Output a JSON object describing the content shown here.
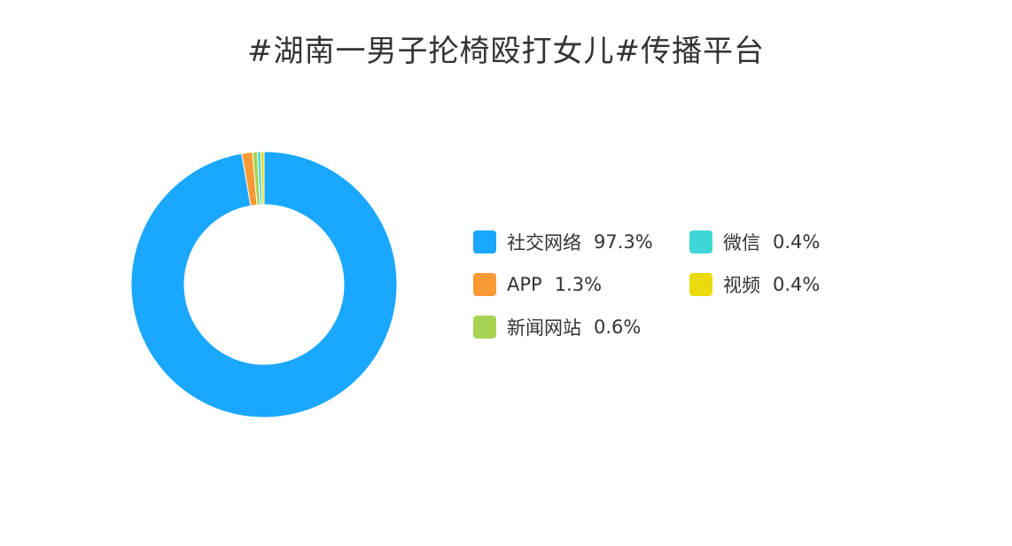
{
  "chart_data": {
    "type": "pie",
    "title": "#湖南一男子抡椅殴打女儿#传播平台",
    "categories": [
      "社交网络",
      "APP",
      "新闻网站",
      "微信",
      "视频"
    ],
    "values": [
      97.3,
      1.3,
      0.6,
      0.4,
      0.4
    ],
    "value_labels": [
      "97.3%",
      "1.3%",
      "0.6%",
      "0.4%",
      "0.4%"
    ],
    "unit": "%",
    "colors": [
      "#1aa7ff",
      "#fa9a34",
      "#a7d453",
      "#3fd6d8",
      "#ecdb0c"
    ],
    "donut": true,
    "legend_position": "right"
  }
}
